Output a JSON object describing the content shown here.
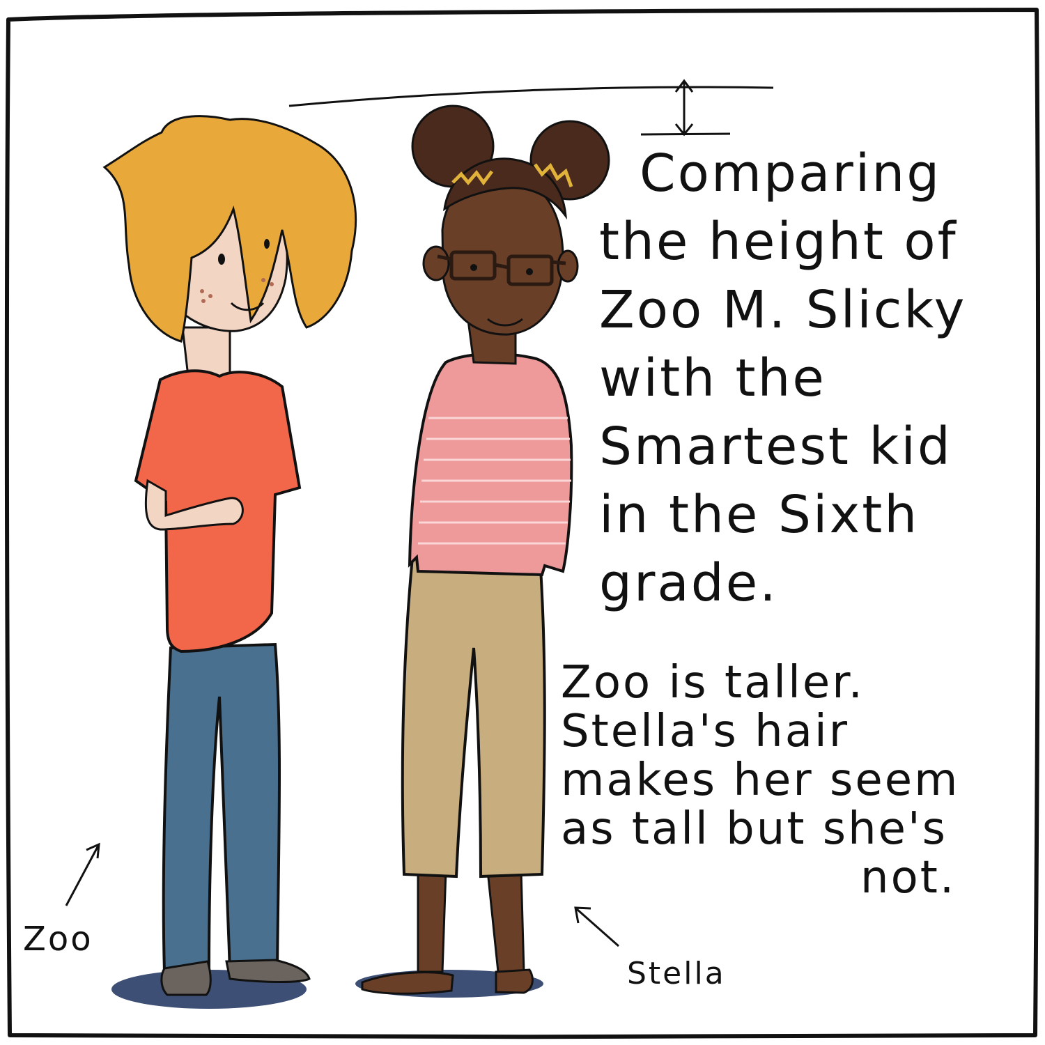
{
  "caption": {
    "lines": [
      "Comparing",
      "the height of",
      "Zoo M. Slicky",
      "with the",
      "Smartest kid",
      "in the Sixth",
      "grade."
    ]
  },
  "note": {
    "lines": [
      "Zoo is taller.",
      "Stella's hair",
      "makes her seem",
      "as tall but she's",
      "not."
    ]
  },
  "labels": {
    "zoo": "Zoo",
    "stella": "Stella"
  },
  "colors": {
    "zoo_hair": "#E8A83A",
    "zoo_shirt": "#F2674A",
    "zoo_jeans": "#4A7090",
    "zoo_skin": "#F3D5C4",
    "stella_skin": "#6A3F28",
    "stella_hair": "#4A2A1C",
    "stella_shirt": "#EE9A9A",
    "stella_pants": "#C8AD7F",
    "shadow": "#3D4F75",
    "ink": "#111111"
  }
}
